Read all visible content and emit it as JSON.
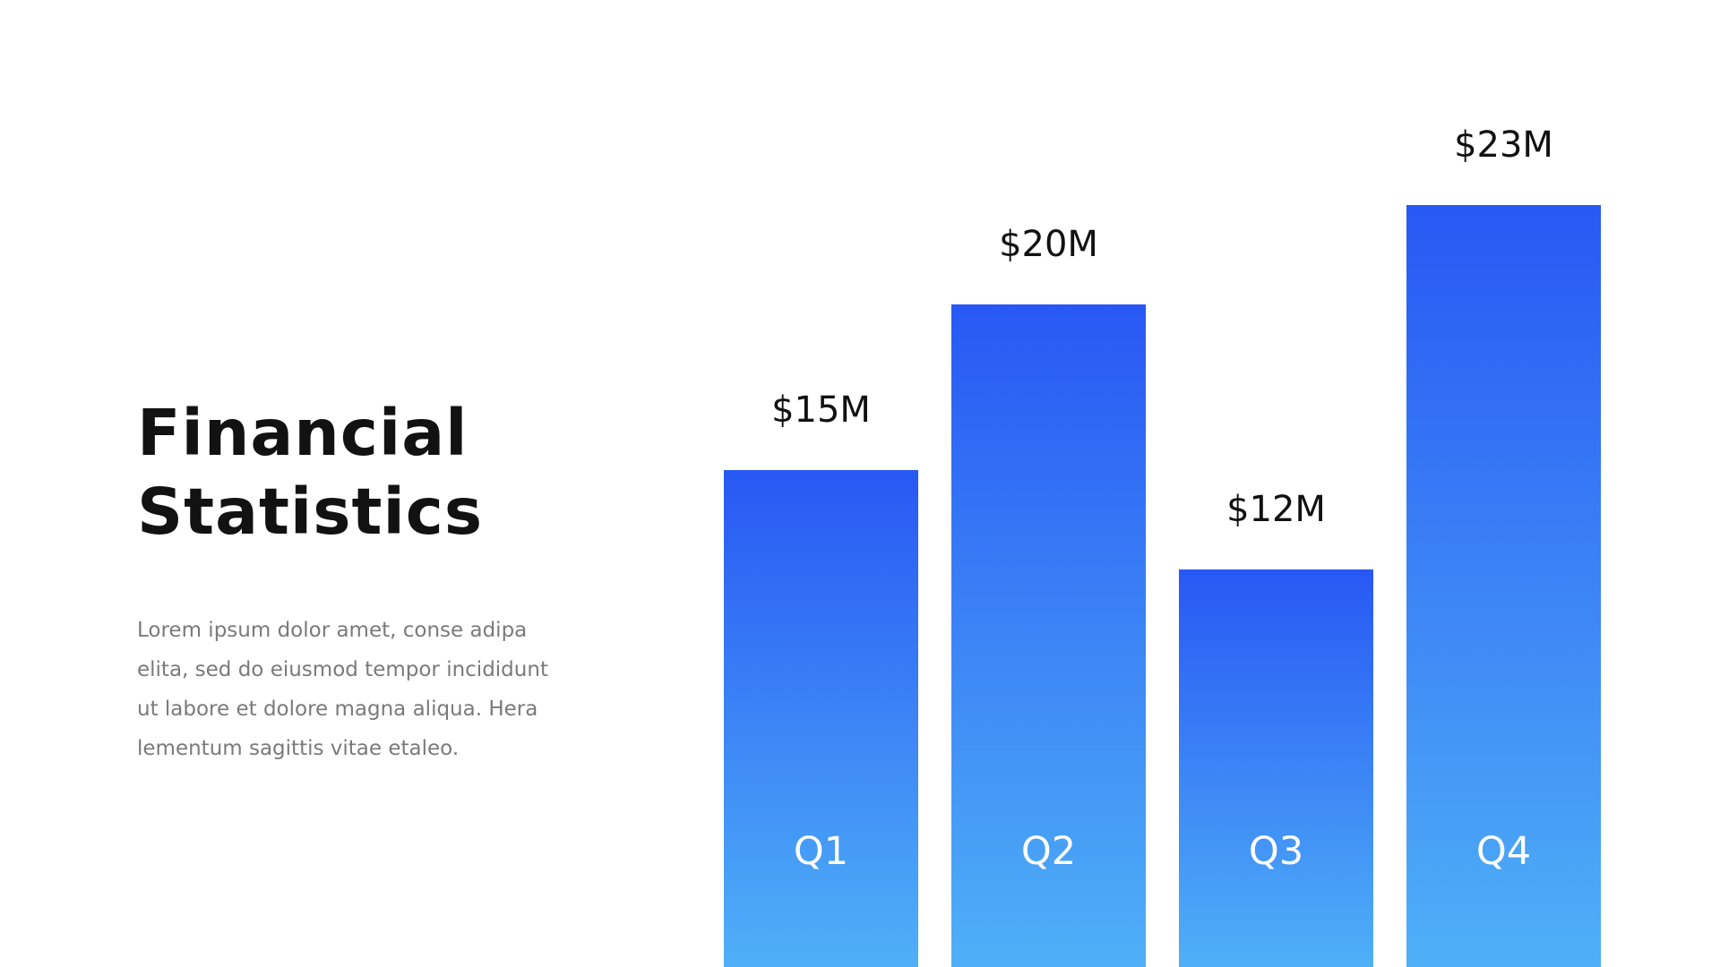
{
  "slide": {
    "title_lines": [
      "Financial",
      "Statistics"
    ],
    "body_lines": [
      "Lorem ipsum dolor amet, conse adipa",
      "elita, sed do eiusmod tempor incididunt",
      "ut labore et dolore magna aliqua. Hera",
      "lementum sagittis vitae etaleo."
    ]
  },
  "colors": {
    "bar_top": "#2858f4",
    "bar_bottom": "#4fb0f7",
    "value_text": "#111111",
    "category_text": "#ffffff"
  },
  "chart_data": {
    "type": "bar",
    "categories": [
      "Q1",
      "Q2",
      "Q3",
      "Q4"
    ],
    "values": [
      15,
      20,
      12,
      23
    ],
    "data_labels": [
      "$15M",
      "$20M",
      "$12M",
      "$23M"
    ],
    "title": "",
    "xlabel": "",
    "ylabel": "",
    "ylim": [
      0,
      27
    ],
    "grid": false,
    "legend": "none"
  }
}
